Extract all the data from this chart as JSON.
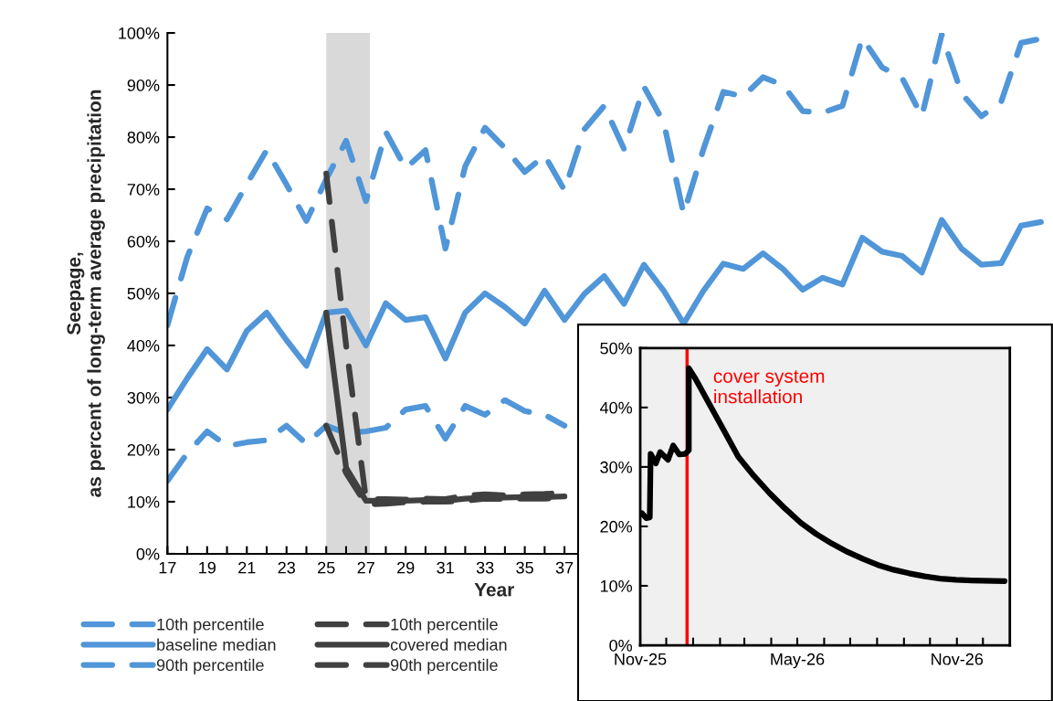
{
  "chart_data": [
    {
      "type": "line",
      "xlabel": "Year",
      "ylabel": "Seepage,\nas percent of long-term average precipitation",
      "x": [
        17,
        18,
        19,
        20,
        21,
        22,
        23,
        24,
        25,
        26,
        27,
        28,
        29,
        30,
        31,
        32,
        33,
        34,
        35,
        36,
        37,
        38,
        39,
        40,
        41,
        42,
        43,
        44,
        45,
        46,
        47,
        48,
        49,
        50,
        51,
        52,
        53,
        54,
        55,
        56,
        57,
        58,
        59,
        60,
        61
      ],
      "series": [
        {
          "name": "10th percentile",
          "color": "#5096d8",
          "line_style": "dashed",
          "values": [
            14,
            19.3,
            23.5,
            20.7,
            21.4,
            21.8,
            24.6,
            21.1,
            24.6,
            23.2,
            23.5,
            24.2,
            27.7,
            28.4,
            22.1,
            28.4,
            26.7,
            29.5,
            27.4,
            26.7,
            24.6,
            null,
            null,
            null,
            null,
            null,
            null,
            null,
            null,
            null,
            null,
            null,
            null,
            null,
            null,
            null,
            null,
            null,
            null,
            null,
            null,
            null,
            null,
            null,
            null
          ]
        },
        {
          "name": "baseline median",
          "color": "#5096d8",
          "line_style": "solid",
          "values": [
            27.7,
            33.7,
            39.3,
            35.4,
            42.8,
            46.3,
            41,
            36.1,
            46.3,
            46.7,
            40,
            48.1,
            44.9,
            45.4,
            37.5,
            46.3,
            50,
            47.4,
            44.2,
            50.5,
            44.9,
            49.9,
            53.3,
            48,
            55.5,
            50.5,
            44.2,
            50.5,
            55.7,
            54.7,
            57.7,
            54.7,
            50.7,
            53,
            51.7,
            60.7,
            58,
            57.2,
            54,
            64.1,
            58.6,
            55.5,
            55.8,
            63,
            63.7
          ]
        },
        {
          "name": "90th percentile",
          "color": "#5096d8",
          "line_style": "dashed",
          "values": [
            43.9,
            57,
            66.3,
            64.2,
            71,
            77.5,
            70.9,
            63.9,
            71.9,
            79.3,
            67.7,
            81,
            74,
            77.5,
            58.6,
            74.4,
            81.8,
            77.9,
            73.3,
            76.5,
            69.8,
            81.5,
            86,
            77.7,
            89.7,
            82.8,
            65.3,
            77.7,
            88.7,
            87.8,
            91.5,
            90,
            85,
            84.7,
            86,
            99,
            93.4,
            91.4,
            84,
            99.7,
            88.4,
            84,
            86.8,
            98.1,
            98.9
          ]
        },
        {
          "name": "10th percentile",
          "color": "#404040",
          "line_style": "dashed",
          "values": [
            null,
            null,
            null,
            null,
            null,
            null,
            null,
            null,
            24.6,
            15.5,
            9.5,
            9.6,
            9.9,
            10,
            10,
            10.2,
            10.6,
            10.5,
            10.6,
            10.6,
            10.8,
            null,
            null,
            null,
            null,
            null,
            null,
            null,
            null,
            null,
            null,
            null,
            null,
            null,
            null,
            null,
            null,
            null,
            null,
            null,
            null,
            null,
            null,
            null,
            null
          ]
        },
        {
          "name": "covered median",
          "color": "#404040",
          "line_style": "solid",
          "values": [
            null,
            null,
            null,
            null,
            null,
            null,
            null,
            null,
            46.3,
            16.5,
            10.2,
            10.2,
            10.2,
            10.3,
            10.2,
            10.6,
            10.8,
            10.8,
            10.9,
            10.9,
            11,
            null,
            null,
            null,
            null,
            null,
            null,
            null,
            null,
            null,
            null,
            null,
            null,
            null,
            null,
            null,
            null,
            null,
            null,
            null,
            null,
            null,
            null,
            null,
            null
          ]
        },
        {
          "name": "90th percentile",
          "color": "#404040",
          "line_style": "dashed",
          "values": [
            null,
            null,
            null,
            null,
            null,
            null,
            null,
            null,
            73,
            40,
            10.5,
            10.5,
            10.4,
            10.6,
            10.5,
            11.2,
            11.4,
            11.2,
            11.4,
            11.5,
            11.7,
            null,
            null,
            null,
            null,
            null,
            null,
            null,
            null,
            null,
            null,
            null,
            null,
            null,
            null,
            null,
            null,
            null,
            null,
            null,
            null,
            null,
            null,
            null,
            null
          ]
        }
      ],
      "bands": [
        {
          "axis": "x",
          "from": 25,
          "to": 27.2,
          "color": "#d9d9d9"
        }
      ],
      "xlim": [
        17,
        61.5
      ],
      "xticks": [
        17,
        {
          "value": 18,
          "label": null
        },
        19,
        {
          "value": 20,
          "label": null
        },
        21,
        {
          "value": 22,
          "label": null
        },
        23,
        {
          "value": 24,
          "label": null
        },
        25,
        {
          "value": 26,
          "label": null
        },
        27,
        {
          "value": 28,
          "label": null
        },
        29,
        {
          "value": 30,
          "label": null
        },
        31,
        {
          "value": 32,
          "label": null
        },
        33,
        {
          "value": 34,
          "label": null
        },
        35,
        {
          "value": 36,
          "label": null
        },
        37
      ],
      "ylim": [
        0,
        100
      ],
      "yticks": [
        {
          "value": 0,
          "label": "0%"
        },
        {
          "value": 10,
          "label": "10%"
        },
        {
          "value": 20,
          "label": "20%"
        },
        {
          "value": 30,
          "label": "30%"
        },
        {
          "value": 40,
          "label": "40%"
        },
        {
          "value": 50,
          "label": "50%"
        },
        {
          "value": 60,
          "label": "60%"
        },
        {
          "value": 70,
          "label": "70%"
        },
        {
          "value": 80,
          "label": "80%"
        },
        {
          "value": 90,
          "label": "90%"
        },
        {
          "value": 100,
          "label": "100%"
        }
      ],
      "grid": false,
      "legend": "bottom"
    },
    {
      "type": "line",
      "x": [
        "2025-11-03",
        "2025-11-08",
        "2025-11-12",
        "2025-11-13",
        "2025-11-19",
        "2025-11-24",
        "2025-12-03",
        "2025-12-09",
        "2025-12-16",
        "2025-12-23",
        "2025-12-27",
        "2025-12-27",
        "2026-01-03",
        "2026-01-17",
        "2026-02-04",
        "2026-02-22",
        "2026-03-12",
        "2026-03-30",
        "2026-04-17",
        "2026-05-05",
        "2026-05-23",
        "2026-06-10",
        "2026-06-28",
        "2026-07-16",
        "2026-08-02",
        "2026-08-20",
        "2026-09-07",
        "2026-09-25",
        "2026-10-13",
        "2026-10-31",
        "2026-11-18",
        "2026-12-26"
      ],
      "series": [
        {
          "color": "#000000",
          "values": [
            22.2,
            21.4,
            21.5,
            32.2,
            30.6,
            32.5,
            31.2,
            33.6,
            32.1,
            32.2,
            32.8,
            46.6,
            45,
            41.3,
            36.5,
            31.7,
            28.5,
            25.6,
            23,
            20.6,
            18.7,
            17.1,
            15.7,
            14.5,
            13.5,
            12.7,
            12.1,
            11.6,
            11.2,
            11,
            10.9,
            10.8
          ]
        }
      ],
      "ref_lines": [
        {
          "axis": "x",
          "value": "2025-12-25",
          "label": "cover system\ninstallation",
          "color": "#ff0000"
        }
      ],
      "xlim": [
        "2025-11-01",
        "2027-01-01"
      ],
      "xticks": [
        {
          "value": "2025-11-01",
          "label": "Nov-25"
        },
        {
          "value": "2025-12-01",
          "label": null
        },
        {
          "value": "2026-01-01",
          "label": null
        },
        {
          "value": "2026-02-01",
          "label": null
        },
        {
          "value": "2026-03-01",
          "label": null
        },
        {
          "value": "2026-04-01",
          "label": null
        },
        {
          "value": "2026-05-01",
          "label": "May-26"
        },
        {
          "value": "2026-06-01",
          "label": null
        },
        {
          "value": "2026-07-01",
          "label": null
        },
        {
          "value": "2026-08-01",
          "label": null
        },
        {
          "value": "2026-09-01",
          "label": null
        },
        {
          "value": "2026-10-01",
          "label": null
        },
        {
          "value": "2026-11-01",
          "label": "Nov-26"
        },
        {
          "value": "2026-12-01",
          "label": null
        }
      ],
      "ylim": [
        0,
        50
      ],
      "yticks": [
        {
          "value": 0,
          "label": "0%"
        },
        {
          "value": 10,
          "label": "10%"
        },
        {
          "value": 20,
          "label": "20%"
        },
        {
          "value": 30,
          "label": "30%"
        },
        {
          "value": 40,
          "label": "40%"
        },
        {
          "value": 50,
          "label": "50%"
        }
      ],
      "grid": false
    }
  ]
}
